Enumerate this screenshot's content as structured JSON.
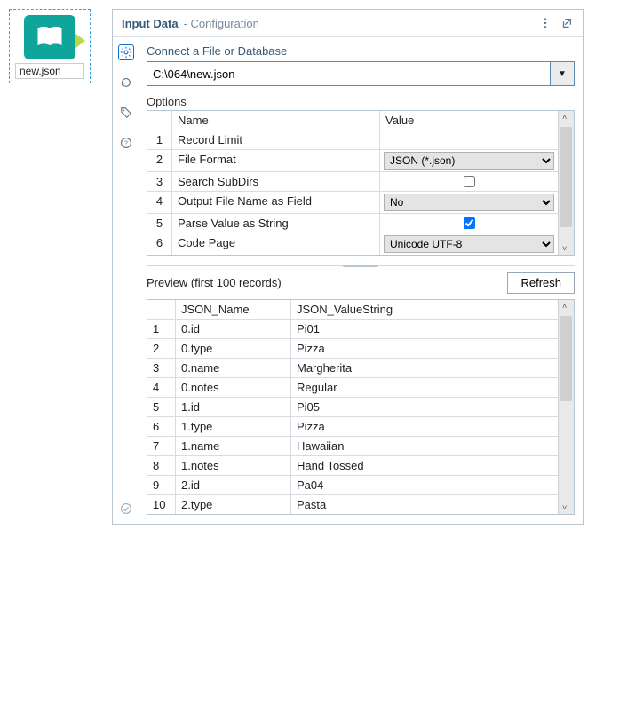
{
  "canvas": {
    "node_label": "new.json"
  },
  "panel": {
    "title": "Input Data",
    "subtitle": "- Configuration"
  },
  "connect": {
    "label": "Connect a File or Database",
    "path": "C:\\064\\new.json"
  },
  "options": {
    "title": "Options",
    "headers": {
      "name": "Name",
      "value": "Value"
    },
    "rows": [
      {
        "idx": "1",
        "name": "Record Limit",
        "type": "blank"
      },
      {
        "idx": "2",
        "name": "File Format",
        "type": "select",
        "value": "JSON (*.json)"
      },
      {
        "idx": "3",
        "name": "Search SubDirs",
        "type": "checkbox",
        "checked": false
      },
      {
        "idx": "4",
        "name": "Output File Name as Field",
        "type": "select",
        "value": "No"
      },
      {
        "idx": "5",
        "name": "Parse Value as String",
        "type": "checkbox",
        "checked": true
      },
      {
        "idx": "6",
        "name": "Code Page",
        "type": "select",
        "value": "Unicode UTF-8"
      }
    ]
  },
  "preview": {
    "title": "Preview (first 100 records)",
    "refresh": "Refresh",
    "headers": {
      "a": "JSON_Name",
      "b": "JSON_ValueString"
    },
    "rows": [
      {
        "idx": "1",
        "a": "0.id",
        "b": "Pi01"
      },
      {
        "idx": "2",
        "a": "0.type",
        "b": "Pizza"
      },
      {
        "idx": "3",
        "a": "0.name",
        "b": "Margherita"
      },
      {
        "idx": "4",
        "a": "0.notes",
        "b": "Regular"
      },
      {
        "idx": "5",
        "a": "1.id",
        "b": "Pi05"
      },
      {
        "idx": "6",
        "a": "1.type",
        "b": "Pizza"
      },
      {
        "idx": "7",
        "a": "1.name",
        "b": "Hawaiian"
      },
      {
        "idx": "8",
        "a": "1.notes",
        "b": "Hand Tossed"
      },
      {
        "idx": "9",
        "a": "2.id",
        "b": "Pa04"
      },
      {
        "idx": "10",
        "a": "2.type",
        "b": "Pasta"
      }
    ]
  },
  "colors": {
    "teal": "#0fa59a",
    "port": "#b6d94a",
    "border": "#b8c6d2",
    "header_text": "#355a7a"
  }
}
